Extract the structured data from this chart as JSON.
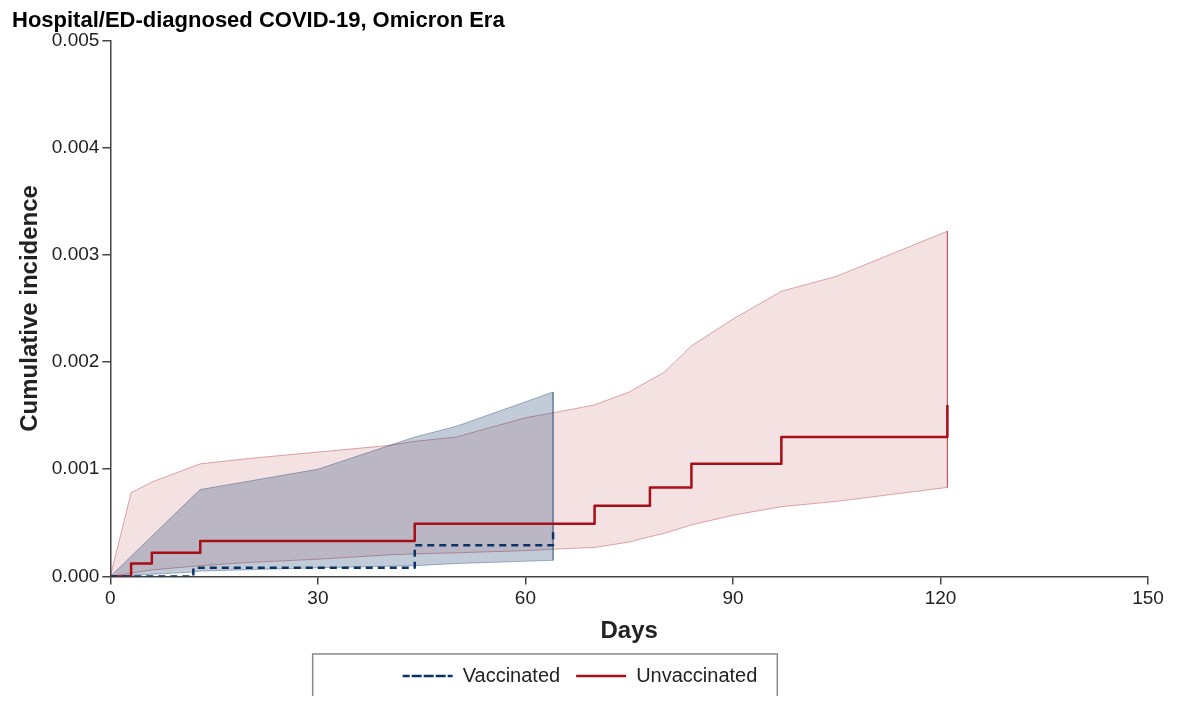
{
  "chart_data": {
    "type": "step",
    "title": "Hospital/ED-diagnosed COVID-19, Omicron Era",
    "xlabel": "Days",
    "ylabel": "Cumulative incidence",
    "xlim": [
      0,
      150
    ],
    "xticks": [
      0,
      30,
      60,
      90,
      120,
      150
    ],
    "ylim": [
      0,
      0.005
    ],
    "yticks": [
      {
        "value": 0,
        "label": "0.000"
      },
      0.001,
      0.002,
      0.003,
      0.004,
      0.005
    ],
    "grid": false,
    "legend": "bottom",
    "marker": "none",
    "series": [
      {
        "name": "Vaccinated",
        "color": "#0b3466",
        "line_style": "dashed",
        "x": [
          0,
          12,
          12,
          13,
          30,
          44,
          44,
          50,
          64,
          64
        ],
        "values": [
          0,
          0,
          8e-05,
          8e-05,
          8e-05,
          8e-05,
          0.00029,
          0.00029,
          0.00029,
          0.00045
        ],
        "upper": [
          0,
          0.00075,
          0.00075,
          0.00081,
          0.001,
          0.0013,
          0.0013,
          0.0014,
          0.00172,
          0.00172
        ],
        "lower": [
          0,
          4e-05,
          4e-05,
          5e-05,
          8e-05,
          0.0001,
          0.0001,
          0.00012,
          0.00015,
          0.00015
        ]
      },
      {
        "name": "Unvaccinated",
        "color": "#a50f15",
        "line_style": "solid",
        "x": [
          0,
          3,
          3,
          6,
          6,
          13,
          13,
          20,
          30,
          40,
          44,
          44,
          50,
          55,
          60,
          66,
          70,
          70,
          75,
          78,
          78,
          80,
          84,
          84,
          90,
          97,
          97,
          105,
          121,
          121
        ],
        "values": [
          0,
          0,
          0.00012,
          0.00012,
          0.00022,
          0.00022,
          0.00033,
          0.00033,
          0.00033,
          0.00033,
          0.00033,
          0.00049,
          0.00049,
          0.00049,
          0.00049,
          0.00049,
          0.00049,
          0.00066,
          0.00066,
          0.00066,
          0.00083,
          0.00083,
          0.00083,
          0.00105,
          0.00105,
          0.00105,
          0.0013,
          0.0013,
          0.0013,
          0.0016
        ],
        "upper": [
          0,
          0.00078,
          0.00078,
          0.00088,
          0.00088,
          0.00105,
          0.00105,
          0.0011,
          0.00116,
          0.00122,
          0.00126,
          0.00126,
          0.0013,
          0.00139,
          0.00148,
          0.00155,
          0.0016,
          0.0016,
          0.00172,
          0.00183,
          0.00183,
          0.0019,
          0.00215,
          0.00215,
          0.0024,
          0.00266,
          0.00266,
          0.0028,
          0.00322,
          0.00322
        ],
        "lower": [
          0,
          3e-05,
          3e-05,
          6e-05,
          6e-05,
          0.0001,
          0.0001,
          0.00013,
          0.00016,
          0.0002,
          0.00021,
          0.00021,
          0.00022,
          0.00023,
          0.00024,
          0.00026,
          0.00027,
          0.00027,
          0.00032,
          0.00037,
          0.00037,
          0.0004,
          0.00048,
          0.00048,
          0.00057,
          0.00065,
          0.00065,
          0.0007,
          0.00083,
          0.00083
        ]
      }
    ]
  }
}
